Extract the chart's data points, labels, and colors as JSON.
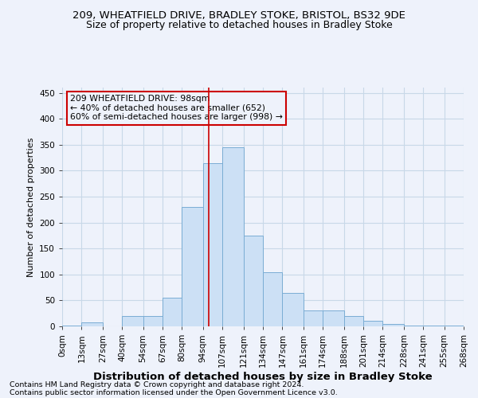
{
  "title": "209, WHEATFIELD DRIVE, BRADLEY STOKE, BRISTOL, BS32 9DE",
  "subtitle": "Size of property relative to detached houses in Bradley Stoke",
  "xlabel": "Distribution of detached houses by size in Bradley Stoke",
  "ylabel": "Number of detached properties",
  "footer_line1": "Contains HM Land Registry data © Crown copyright and database right 2024.",
  "footer_line2": "Contains public sector information licensed under the Open Government Licence v3.0.",
  "bar_color": "#cce0f5",
  "bar_edge_color": "#7aadd4",
  "grid_color": "#c8d8e8",
  "annotation_box_color": "#cc0000",
  "vline_color": "#cc0000",
  "vline_x": 98,
  "annotation_text_line1": "209 WHEATFIELD DRIVE: 98sqm",
  "annotation_text_line2": "← 40% of detached houses are smaller (652)",
  "annotation_text_line3": "60% of semi-detached houses are larger (998) →",
  "bin_edges": [
    0,
    13,
    27,
    40,
    54,
    67,
    80,
    94,
    107,
    121,
    134,
    147,
    161,
    174,
    188,
    201,
    214,
    228,
    241,
    255,
    268
  ],
  "bin_labels": [
    "0sqm",
    "13sqm",
    "27sqm",
    "40sqm",
    "54sqm",
    "67sqm",
    "80sqm",
    "94sqm",
    "107sqm",
    "121sqm",
    "134sqm",
    "147sqm",
    "161sqm",
    "174sqm",
    "188sqm",
    "201sqm",
    "214sqm",
    "228sqm",
    "241sqm",
    "255sqm",
    "268sqm"
  ],
  "bar_heights": [
    1,
    8,
    0,
    20,
    20,
    55,
    230,
    315,
    345,
    175,
    105,
    65,
    30,
    30,
    20,
    10,
    5,
    2,
    1,
    1
  ],
  "ylim": [
    0,
    460
  ],
  "yticks": [
    0,
    50,
    100,
    150,
    200,
    250,
    300,
    350,
    400,
    450
  ],
  "background_color": "#eef2fb",
  "title_fontsize": 9.5,
  "subtitle_fontsize": 9,
  "xlabel_fontsize": 9.5,
  "ylabel_fontsize": 8,
  "tick_fontsize": 7.5,
  "footer_fontsize": 6.8,
  "annotation_fontsize": 7.8
}
